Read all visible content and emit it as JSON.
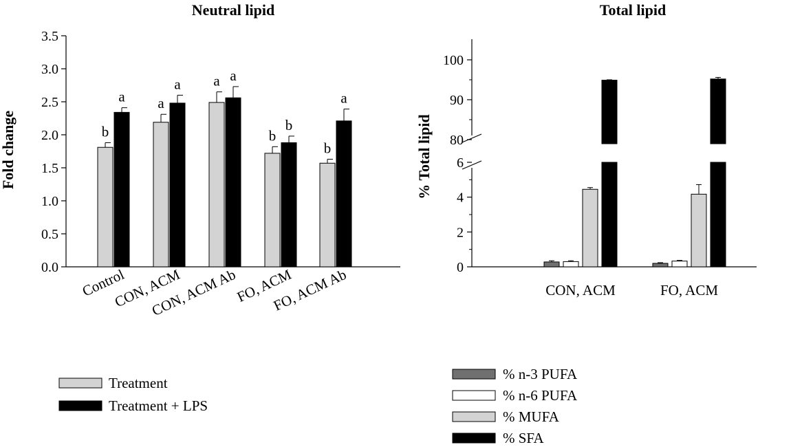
{
  "chart_data": [
    {
      "type": "bar",
      "title": "Neutral lipid",
      "xlabel": "",
      "ylabel": "Fold change",
      "ylim": [
        0,
        3.5
      ],
      "yticks": [
        "0.0",
        "0.5",
        "1.0",
        "1.5",
        "2.0",
        "2.5",
        "3.0",
        "3.5"
      ],
      "categories": [
        "Control",
        "CON, ACM",
        "CON, ACM Ab",
        "FO, ACM",
        "FO, ACM Ab"
      ],
      "series": [
        {
          "name": "Treatment",
          "color": "#d3d3d3",
          "values": [
            1.81,
            2.19,
            2.49,
            1.72,
            1.57
          ],
          "errors": [
            0.07,
            0.12,
            0.16,
            0.1,
            0.06
          ],
          "labels": [
            "b",
            "a",
            "a",
            "b",
            "b"
          ]
        },
        {
          "name": "Treatment + LPS",
          "color": "#000000",
          "values": [
            2.34,
            2.48,
            2.56,
            1.88,
            2.21
          ],
          "errors": [
            0.07,
            0.12,
            0.17,
            0.1,
            0.18
          ],
          "labels": [
            "a",
            "a",
            "a",
            "b",
            "a"
          ]
        }
      ],
      "legend": [
        "Treatment",
        "Treatment + LPS"
      ],
      "legend_position": "bottom-left"
    },
    {
      "type": "bar",
      "title": "Total lipid",
      "xlabel": "",
      "ylabel": "% Total lipid",
      "y_axis_break": [
        6,
        78
      ],
      "ylim": [
        0,
        105
      ],
      "yticks_lower": [
        "0",
        "2",
        "4",
        "6"
      ],
      "yticks_upper": [
        "80",
        "90",
        "100"
      ],
      "categories": [
        "CON, ACM",
        "FO, ACM"
      ],
      "series": [
        {
          "name": "% n-3 PUFA",
          "color": "#707070",
          "values": [
            0.28,
            0.2
          ],
          "errors": [
            0.07,
            0.04
          ]
        },
        {
          "name": "% n-6 PUFA",
          "color": "#ffffff",
          "values": [
            0.3,
            0.33
          ],
          "errors": [
            0.05,
            0.04
          ]
        },
        {
          "name": "% MUFA",
          "color": "#d3d3d3",
          "values": [
            4.45,
            4.17
          ],
          "errors": [
            0.1,
            0.55
          ]
        },
        {
          "name": "% SFA",
          "color": "#000000",
          "values": [
            94.9,
            95.2
          ],
          "errors": [
            0.1,
            0.4
          ]
        }
      ],
      "legend": [
        "% n-3 PUFA",
        "% n-6 PUFA",
        "% MUFA",
        "% SFA"
      ],
      "legend_position": "bottom-center"
    }
  ]
}
